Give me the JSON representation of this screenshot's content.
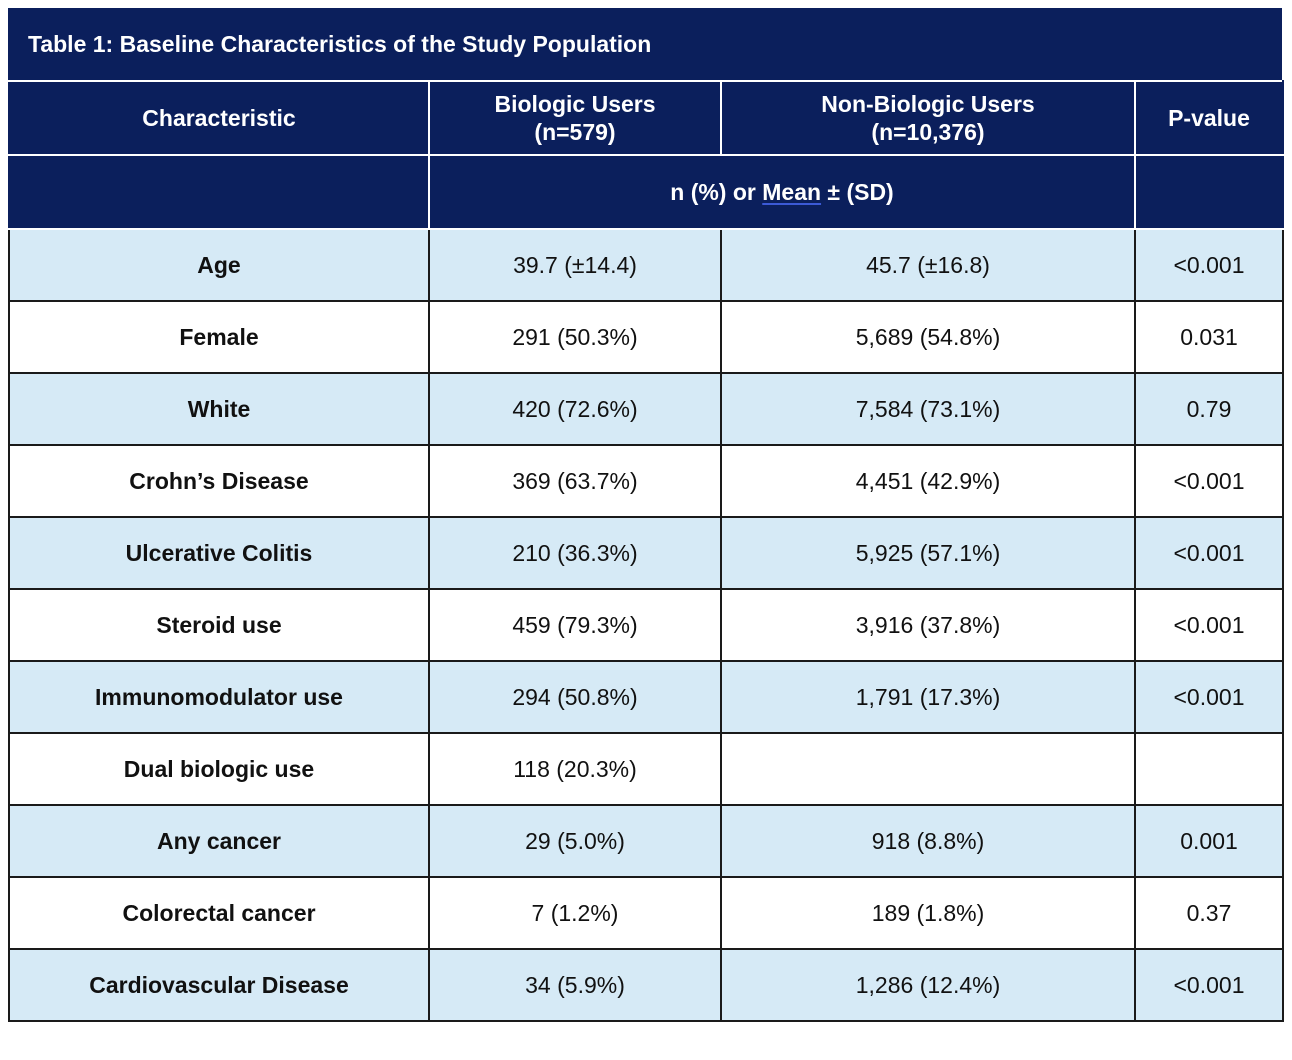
{
  "title": "Table 1: Baseline Characteristics of the Study Population",
  "headers": {
    "characteristic": "Characteristic",
    "biologic_line1": "Biologic Users",
    "biologic_line2": "(n=579)",
    "nonbiologic_line1": "Non-Biologic Users",
    "nonbiologic_line2": "(n=10,376)",
    "pvalue": "P-value",
    "sub_prefix": "n (%) or ",
    "sub_mean": "Mean",
    "sub_suffix": " ± (SD)"
  },
  "rows": [
    {
      "characteristic": "Age",
      "biologic": "39.7 (±14.4)",
      "nonbiologic": "45.7 (±16.8)",
      "pvalue": "<0.001"
    },
    {
      "characteristic": "Female",
      "biologic": "291 (50.3%)",
      "nonbiologic": "5,689 (54.8%)",
      "pvalue": "0.031"
    },
    {
      "characteristic": "White",
      "biologic": "420 (72.6%)",
      "nonbiologic": "7,584 (73.1%)",
      "pvalue": "0.79"
    },
    {
      "characteristic": "Crohn’s Disease",
      "biologic": "369 (63.7%)",
      "nonbiologic": "4,451 (42.9%)",
      "pvalue": "<0.001"
    },
    {
      "characteristic": "Ulcerative Colitis",
      "biologic": "210 (36.3%)",
      "nonbiologic": "5,925 (57.1%)",
      "pvalue": "<0.001"
    },
    {
      "characteristic": "Steroid use",
      "biologic": "459 (79.3%)",
      "nonbiologic": "3,916 (37.8%)",
      "pvalue": "<0.001"
    },
    {
      "characteristic": "Immunomodulator use",
      "biologic": "294 (50.8%)",
      "nonbiologic": "1,791 (17.3%)",
      "pvalue": "<0.001"
    },
    {
      "characteristic": "Dual biologic use",
      "biologic": "118 (20.3%)",
      "nonbiologic": "",
      "pvalue": ""
    },
    {
      "characteristic": "Any cancer",
      "biologic": "29 (5.0%)",
      "nonbiologic": "918 (8.8%)",
      "pvalue": "0.001"
    },
    {
      "characteristic": "Colorectal cancer",
      "biologic": "7 (1.2%)",
      "nonbiologic": "189 (1.8%)",
      "pvalue": "0.37"
    },
    {
      "characteristic": "Cardiovascular Disease",
      "biologic": "34 (5.9%)",
      "nonbiologic": "1,286 (12.4%)",
      "pvalue": "<0.001"
    }
  ],
  "colors": {
    "header_bg": "#0b1f5c",
    "row_shade": "#d6eaf6",
    "row_plain": "#ffffff"
  }
}
